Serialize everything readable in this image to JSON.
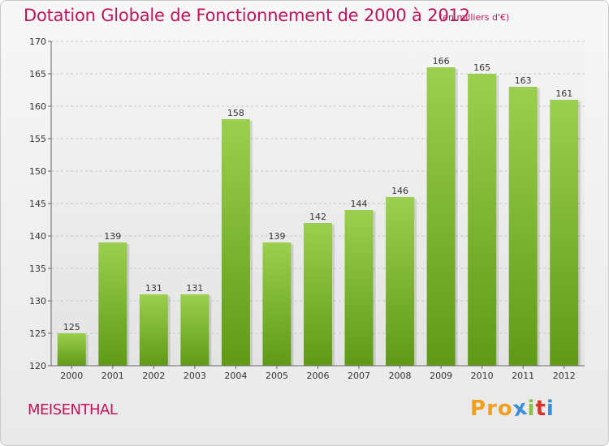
{
  "header": {
    "title": "Dotation Globale de Fonctionnement de 2000 à 2012",
    "subtitle": "(en milliers d'€)"
  },
  "footer": {
    "city": "MEISENTHAL",
    "logo": [
      "P",
      "r",
      "o",
      "x",
      "i",
      "t",
      "i"
    ]
  },
  "colors": {
    "title": "#c0145a",
    "bar_top": "#9ccf4f",
    "bar_bottom": "#5f9a17",
    "logo": [
      "#f0a020",
      "#f0a020",
      "#f0a020",
      "#3a8fd8",
      "#88c040",
      "#e0302a",
      "#3a8fd8"
    ]
  },
  "chart_data": {
    "type": "bar",
    "categories": [
      "2000",
      "2001",
      "2002",
      "2003",
      "2004",
      "2005",
      "2006",
      "2007",
      "2008",
      "2009",
      "2010",
      "2011",
      "2012"
    ],
    "values": [
      125,
      139,
      131,
      131,
      158,
      139,
      142,
      144,
      146,
      166,
      165,
      163,
      161
    ],
    "value_labels": [
      "125",
      "139",
      "131",
      "131",
      "158",
      "139",
      "142",
      "144",
      "146",
      "166",
      "165",
      "163",
      "161"
    ],
    "yticks": [
      "120",
      "125",
      "130",
      "135",
      "140",
      "145",
      "150",
      "155",
      "160",
      "165",
      "170"
    ],
    "ylim": [
      120,
      170
    ],
    "grid": true,
    "legend": "none"
  }
}
